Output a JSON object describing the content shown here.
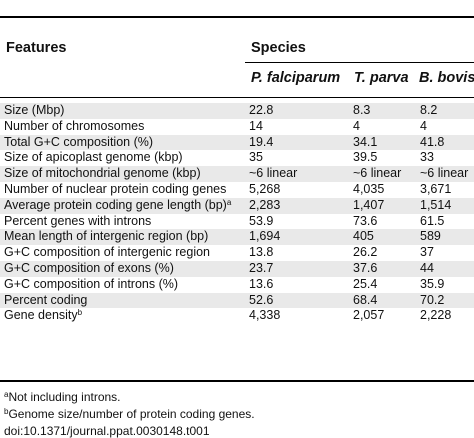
{
  "table": {
    "header_features": "Features",
    "header_species": "Species",
    "species": [
      "P. falciparum",
      "T. parva",
      "B. bovis"
    ],
    "rows": [
      {
        "feature": "Size (Mbp)",
        "sup": "",
        "values": [
          "22.8",
          "8.3",
          "8.2"
        ]
      },
      {
        "feature": "Number of chromosomes",
        "sup": "",
        "values": [
          "14",
          "4",
          "4"
        ]
      },
      {
        "feature": "Total G+C composition (%)",
        "sup": "",
        "values": [
          "19.4",
          "34.1",
          "41.8"
        ]
      },
      {
        "feature": "Size of apicoplast genome (kbp)",
        "sup": "",
        "values": [
          "35",
          "39.5",
          "33"
        ]
      },
      {
        "feature": "Size of mitochondrial genome (kbp)",
        "sup": "",
        "values": [
          "~6 linear",
          "~6 linear",
          "~6 linear"
        ]
      },
      {
        "feature": "Number of nuclear protein coding genes",
        "sup": "",
        "values": [
          "5,268",
          "4,035",
          "3,671"
        ]
      },
      {
        "feature": "Average protein coding gene length (bp)",
        "sup": "a",
        "values": [
          "2,283",
          "1,407",
          "1,514"
        ]
      },
      {
        "feature": "Percent genes with introns",
        "sup": "",
        "values": [
          "53.9",
          "73.6",
          "61.5"
        ]
      },
      {
        "feature": "Mean length of intergenic region (bp)",
        "sup": "",
        "values": [
          "1,694",
          "405",
          "589"
        ]
      },
      {
        "feature": "G+C composition of intergenic region",
        "sup": "",
        "values": [
          "13.8",
          "26.2",
          "37"
        ]
      },
      {
        "feature": "G+C composition of exons (%)",
        "sup": "",
        "values": [
          "23.7",
          "37.6",
          "44"
        ]
      },
      {
        "feature": "G+C composition of introns (%)",
        "sup": "",
        "values": [
          "13.6",
          "25.4",
          "35.9"
        ]
      },
      {
        "feature": "Percent coding",
        "sup": "",
        "values": [
          "52.6",
          "68.4",
          "70.2"
        ]
      },
      {
        "feature": "Gene density",
        "sup": "b",
        "values": [
          "4,338",
          "2,057",
          "2,228"
        ]
      }
    ]
  },
  "footnotes": {
    "a": {
      "mark": "a",
      "text": "Not including introns."
    },
    "b": {
      "mark": "b",
      "text": "Genome size/number of protein coding genes."
    },
    "doi": "doi:10.1371/journal.ppat.0030148.t001"
  }
}
